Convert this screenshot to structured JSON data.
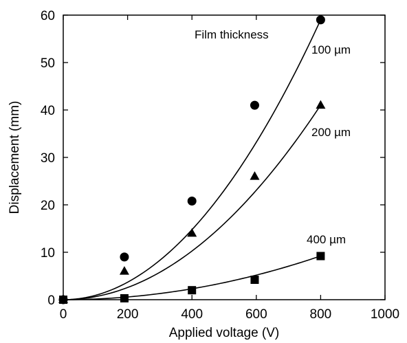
{
  "chart_data": {
    "type": "scatter",
    "title": "",
    "xlabel": "Applied voltage (V)",
    "ylabel": "Displacement (mm)",
    "xlim": [
      0,
      1000
    ],
    "ylim": [
      0,
      60
    ],
    "xticks": [
      0,
      200,
      400,
      600,
      800,
      1000
    ],
    "yticks": [
      0,
      10,
      20,
      30,
      40,
      50,
      60
    ],
    "grid": false,
    "legend": "none",
    "annotations": {
      "heading": "Film thickness"
    },
    "series": [
      {
        "name": "100 µm",
        "marker": "circle",
        "x": [
          0,
          190,
          400,
          595,
          800
        ],
        "y": [
          0,
          9,
          20.8,
          41,
          59
        ],
        "fit_coef": 9.22e-05,
        "color": "#000000"
      },
      {
        "name": "200 µm",
        "marker": "triangle",
        "x": [
          0,
          190,
          400,
          595,
          800
        ],
        "y": [
          0,
          6,
          14,
          26,
          41
        ],
        "fit_coef": 6.41e-05,
        "color": "#000000"
      },
      {
        "name": "400 µm",
        "marker": "square",
        "x": [
          0,
          190,
          400,
          595,
          800
        ],
        "y": [
          0,
          0.3,
          2,
          4.2,
          9.2
        ],
        "fit_coef": 1.44e-05,
        "color": "#000000"
      }
    ]
  }
}
